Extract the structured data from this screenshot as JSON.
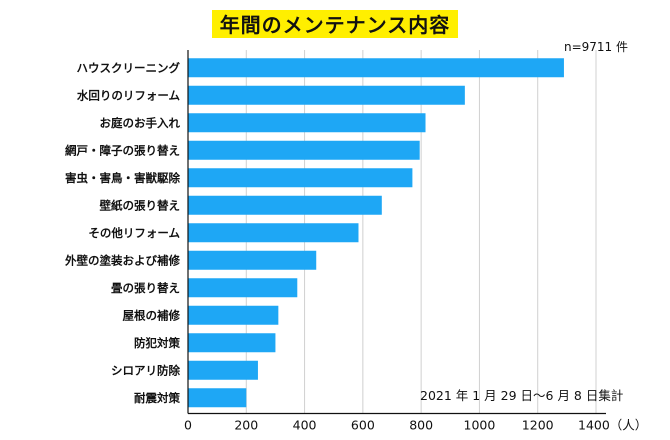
{
  "chart_data": {
    "type": "bar",
    "orientation": "horizontal",
    "title": "年間のメンテナンス内容",
    "sample_size": "n=9711 件",
    "period": "2021 年 1 月 29 日～6 月 8 日集計",
    "categories": [
      "ハウスクリーニング",
      "水回りのリフォーム",
      "お庭のお手入れ",
      "網戸・障子の張り替え",
      "害虫・害鳥・害獣駆除",
      "壁紙の張り替え",
      "その他リフォーム",
      "外壁の塗装および補修",
      "畳の張り替え",
      "屋根の補修",
      "防犯対策",
      "シロアリ防除",
      "耐震対策"
    ],
    "values": [
      1290,
      950,
      815,
      795,
      770,
      665,
      585,
      440,
      375,
      310,
      300,
      240,
      200
    ],
    "xlim": [
      0,
      1400
    ],
    "xticks": [
      "0",
      "200",
      "400",
      "600",
      "800",
      "1000",
      "1200",
      "1400（人）"
    ],
    "grid": true,
    "bar_color": "#1ea7f5",
    "grid_color": "#d0d0d0"
  }
}
